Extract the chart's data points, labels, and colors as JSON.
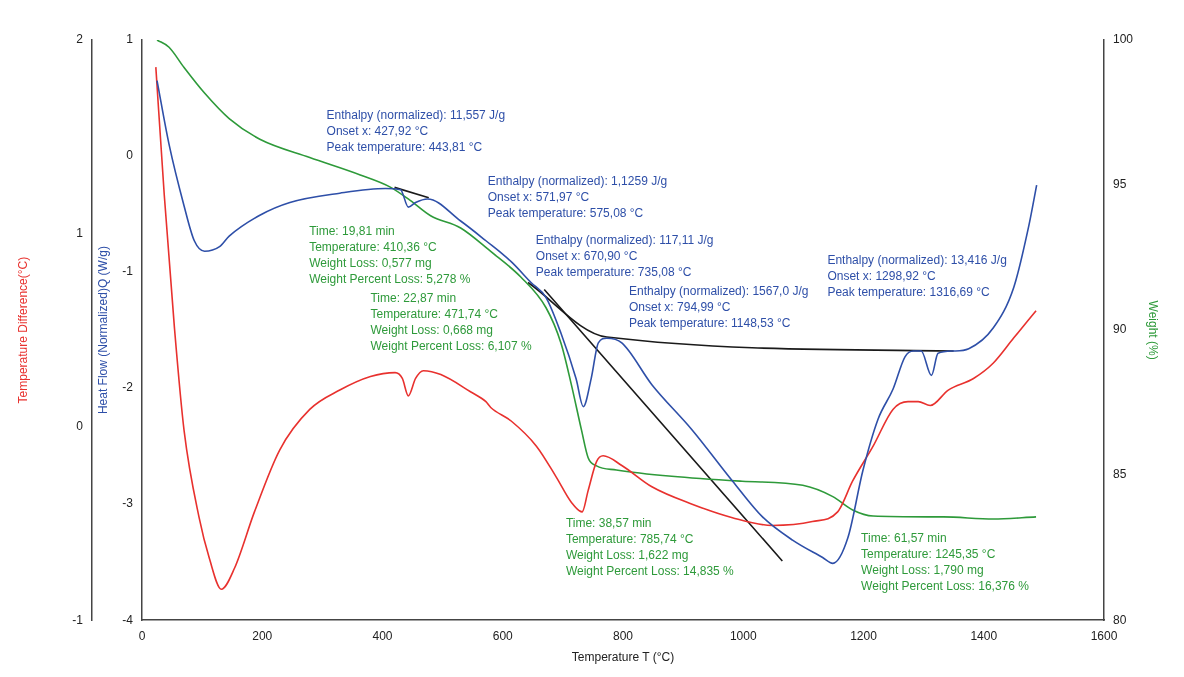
{
  "chart_data": {
    "type": "line",
    "xlabel": "Temperature T (°C)",
    "ylabel": "Heat Flow (Normalized)Q (W/g)",
    "y2label": "Weight (%)",
    "y3label": "Temperature Difference(°C)",
    "xlim": [
      0,
      1600
    ],
    "xticks": [
      0,
      200,
      400,
      600,
      800,
      1000,
      1200,
      1400,
      1600
    ],
    "ylim": [
      -4,
      1
    ],
    "yticks": [
      -4,
      -3,
      -2,
      -1,
      0,
      1
    ],
    "y2lim": [
      80,
      100
    ],
    "y2ticks": [
      80,
      85,
      90,
      95,
      100
    ],
    "y3lim": [
      -1,
      2
    ],
    "y3ticks": [
      -1,
      0,
      1,
      2
    ],
    "series": [
      {
        "color": "#2e4fa8",
        "x": [
          25,
          45,
          70,
          87,
          104,
          129,
          145,
          196,
          246,
          329,
          405,
          430,
          443,
          455,
          475,
          530,
          572,
          614,
          647,
          672,
          697,
          722,
          734,
          747,
          759,
          773,
          798,
          848,
          915,
          982,
          1032,
          1082,
          1132,
          1149,
          1174,
          1199,
          1224,
          1249,
          1269,
          1283,
          1296,
          1313,
          1324,
          1350,
          1375,
          1416,
          1450,
          1475,
          1488
        ],
        "values": [
          0.65,
          0.1,
          -0.43,
          -0.73,
          -0.82,
          -0.78,
          -0.69,
          -0.51,
          -0.4,
          -0.32,
          -0.28,
          -0.29,
          -0.44,
          -0.4,
          -0.37,
          -0.56,
          -0.73,
          -0.91,
          -1.09,
          -1.22,
          -1.53,
          -1.92,
          -2.16,
          -1.92,
          -1.61,
          -1.57,
          -1.61,
          -1.97,
          -2.36,
          -2.8,
          -3.11,
          -3.31,
          -3.46,
          -3.51,
          -3.29,
          -2.71,
          -2.27,
          -2.01,
          -1.73,
          -1.68,
          -1.68,
          -1.89,
          -1.7,
          -1.68,
          -1.66,
          -1.48,
          -1.13,
          -0.6,
          -0.25
        ]
      },
      {
        "color": "#e8312e",
        "axis": "y3",
        "x": [
          23,
          37,
          54,
          70,
          95,
          112,
          132,
          154,
          187,
          229,
          279,
          329,
          380,
          421,
          433,
          443,
          455,
          468,
          497,
          547,
          572,
          580,
          614,
          656,
          689,
          714,
          732,
          742,
          756,
          767,
          798,
          848,
          915,
          982,
          1048,
          1115,
          1157,
          1182,
          1216,
          1249,
          1274,
          1291,
          1311,
          1341,
          1383,
          1416,
          1450,
          1487
        ],
        "values": [
          1.86,
          1.2,
          0.51,
          -0.02,
          -0.47,
          -0.68,
          -0.84,
          -0.73,
          -0.44,
          -0.12,
          0.09,
          0.19,
          0.26,
          0.28,
          0.25,
          0.16,
          0.25,
          0.29,
          0.27,
          0.18,
          0.13,
          0.1,
          0.03,
          -0.1,
          -0.26,
          -0.39,
          -0.44,
          -0.33,
          -0.18,
          -0.15,
          -0.2,
          -0.31,
          -0.4,
          -0.47,
          -0.51,
          -0.49,
          -0.44,
          -0.28,
          -0.1,
          0.09,
          0.13,
          0.13,
          0.11,
          0.19,
          0.25,
          0.33,
          0.46,
          0.6
        ]
      },
      {
        "color": "#2e9a3a",
        "axis": "y2",
        "x": [
          25,
          45,
          70,
          104,
          145,
          196,
          279,
          363,
          413,
          446,
          480,
          530,
          580,
          630,
          672,
          697,
          714,
          731,
          742,
          756,
          789,
          881,
          998,
          1099,
          1149,
          1182,
          1216,
          1333,
          1416,
          1487
        ],
        "values": [
          100,
          99.75,
          99.05,
          98.17,
          97.29,
          96.58,
          95.95,
          95.35,
          94.93,
          94.47,
          93.94,
          93.52,
          92.71,
          91.83,
          90.77,
          89.54,
          88.13,
          86.55,
          85.6,
          85.32,
          85.18,
          84.96,
          84.79,
          84.65,
          84.26,
          83.8,
          83.59,
          83.56,
          83.49,
          83.56
        ]
      },
      {
        "color": "#1a1a1a",
        "x": [
          420,
          477
        ],
        "values": [
          -0.27,
          -0.36
        ]
      },
      {
        "color": "#1a1a1a",
        "x": [
          642,
          773,
          1350
        ],
        "values": [
          -1.09,
          -1.56,
          -1.68
        ]
      },
      {
        "color": "#1a1a1a",
        "x": [
          669,
          1065
        ],
        "values": [
          -1.15,
          -3.49
        ]
      }
    ],
    "annotations": [
      "Enthalpy (normalized): 11,557 J/g\nOnset x: 427,92 °C\nPeak temperature: 443,81 °C",
      "Enthalpy (normalized): 1,1259 J/g\nOnset x: 571,97 °C\nPeak temperature: 575,08 °C",
      "Enthalpy (normalized): 117,11 J/g\nOnset x: 670,90 °C\nPeak temperature: 735,08 °C",
      "Enthalpy (normalized): 1567,0 J/g\nOnset x: 794,99 °C\nPeak temperature: 1148,53 °C",
      "Enthalpy (normalized): 13,416 J/g\nOnset x: 1298,92 °C\nPeak temperature: 1316,69 °C",
      "Time: 19,81 min\nTemperature: 410,36 °C\nWeight Loss: 0,577 mg\nWeight Percent Loss: 5,278 %",
      "Time: 22,87 min\nTemperature: 471,74 °C\nWeight Loss: 0,668 mg\nWeight Percent Loss: 6,107 %",
      "Time: 38,57 min\nTemperature: 785,74 °C\nWeight Loss: 1,622 mg\nWeight Percent Loss: 14,835 %",
      "Time: 61,57 min\nTemperature: 1245,35 °C\nWeight Loss: 1,790 mg\nWeight Percent Loss: 16,376 %"
    ]
  }
}
